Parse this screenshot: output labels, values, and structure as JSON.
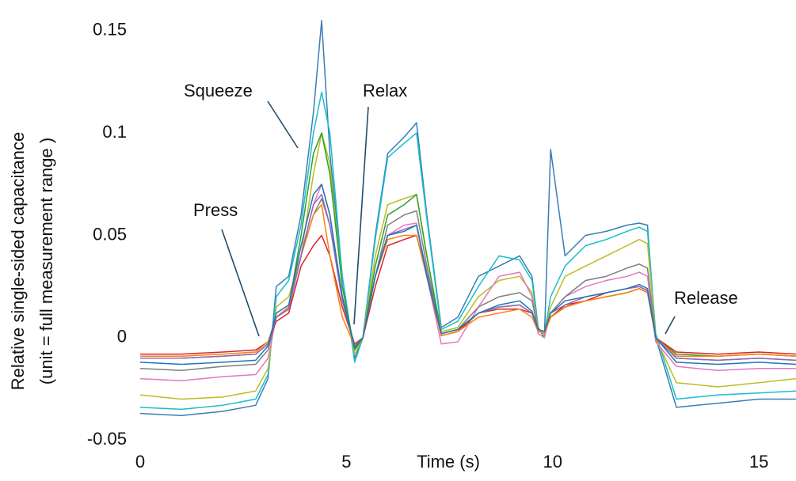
{
  "chart_data": {
    "type": "line",
    "xlabel": "Time (s)",
    "ylabel": [
      "Relative single-sided capacitance",
      "(unit = full measurement range )"
    ],
    "annotations": [
      "Squeeze",
      "Relax",
      "Press",
      "Release"
    ],
    "xlim": [
      0,
      15.9
    ],
    "ylim": [
      -0.07,
      0.165
    ],
    "xticks": [
      0,
      5,
      10,
      15
    ],
    "yticks": [
      0.15,
      0.1,
      0.05,
      0,
      -0.05
    ],
    "x": [
      0,
      1,
      2,
      2.8,
      3.1,
      3.3,
      3.6,
      3.9,
      4.2,
      4.4,
      4.6,
      4.9,
      5.2,
      5.4,
      5.7,
      6.0,
      6.4,
      6.7,
      6.95,
      7.3,
      7.7,
      8.2,
      8.7,
      9.2,
      9.5,
      9.65,
      9.8,
      9.95,
      10.3,
      10.8,
      11.3,
      11.8,
      12.1,
      12.3,
      12.5,
      13,
      14,
      15,
      15.9
    ],
    "series": [
      {
        "color": "#3a7db5",
        "values": [
          -0.037,
          -0.038,
          -0.036,
          -0.033,
          -0.02,
          0.025,
          0.03,
          0.06,
          0.11,
          0.155,
          0.09,
          0.03,
          -0.01,
          0.0,
          0.05,
          0.09,
          0.098,
          0.105,
          0.06,
          0.005,
          0.01,
          0.03,
          0.035,
          0.04,
          0.03,
          0.005,
          0.0,
          0.092,
          0.04,
          0.05,
          0.052,
          0.055,
          0.056,
          0.055,
          0.0,
          -0.034,
          -0.032,
          -0.03,
          -0.03
        ]
      },
      {
        "color": "#17becf",
        "values": [
          -0.034,
          -0.035,
          -0.033,
          -0.03,
          -0.018,
          0.02,
          0.028,
          0.055,
          0.1,
          0.12,
          0.1,
          0.03,
          -0.012,
          0.0,
          0.048,
          0.088,
          0.095,
          0.1,
          0.058,
          0.004,
          0.008,
          0.025,
          0.04,
          0.038,
          0.028,
          0.004,
          0.002,
          0.02,
          0.035,
          0.045,
          0.048,
          0.052,
          0.054,
          0.052,
          0.002,
          -0.03,
          -0.028,
          -0.027,
          -0.026
        ]
      },
      {
        "color": "#bcbd22",
        "values": [
          -0.028,
          -0.03,
          -0.029,
          -0.026,
          -0.015,
          0.015,
          0.02,
          0.04,
          0.08,
          0.1,
          0.085,
          0.025,
          -0.008,
          0.0,
          0.04,
          0.065,
          0.068,
          0.07,
          0.04,
          0.003,
          0.005,
          0.02,
          0.028,
          0.03,
          0.022,
          0.004,
          0.002,
          0.015,
          0.03,
          0.035,
          0.04,
          0.045,
          0.048,
          0.046,
          0.0,
          -0.022,
          -0.024,
          -0.022,
          -0.02
        ]
      },
      {
        "color": "#e377c2",
        "values": [
          -0.02,
          -0.021,
          -0.019,
          -0.018,
          -0.01,
          0.01,
          0.015,
          0.04,
          0.065,
          0.075,
          0.06,
          0.02,
          -0.005,
          0.0,
          0.03,
          0.05,
          0.055,
          0.056,
          0.03,
          -0.003,
          -0.002,
          0.015,
          0.03,
          0.032,
          0.02,
          0.002,
          0.0,
          0.012,
          0.02,
          0.025,
          0.028,
          0.03,
          0.032,
          0.03,
          -0.002,
          -0.014,
          -0.016,
          -0.015,
          -0.015
        ]
      },
      {
        "color": "#7f7f7f",
        "values": [
          -0.015,
          -0.016,
          -0.014,
          -0.013,
          -0.006,
          0.01,
          0.014,
          0.04,
          0.06,
          0.068,
          0.055,
          0.02,
          -0.004,
          0.0,
          0.03,
          0.055,
          0.06,
          0.062,
          0.035,
          0.002,
          0.004,
          0.015,
          0.02,
          0.022,
          0.018,
          0.004,
          0.003,
          0.012,
          0.02,
          0.028,
          0.03,
          0.034,
          0.036,
          0.034,
          0.0,
          -0.01,
          -0.011,
          -0.01,
          -0.011
        ]
      },
      {
        "color": "#2ca02c",
        "values": [
          -0.01,
          -0.01,
          -0.009,
          -0.008,
          -0.003,
          0.01,
          0.015,
          0.05,
          0.09,
          0.1,
          0.08,
          0.025,
          -0.006,
          0.0,
          0.035,
          0.06,
          0.065,
          0.07,
          0.04,
          0.002,
          0.004,
          0.012,
          0.015,
          0.016,
          0.012,
          0.004,
          0.003,
          0.01,
          0.015,
          0.018,
          0.02,
          0.022,
          0.024,
          0.022,
          0.0,
          -0.008,
          -0.009,
          -0.008,
          -0.009
        ]
      },
      {
        "color": "#d62728",
        "values": [
          -0.008,
          -0.008,
          -0.007,
          -0.006,
          -0.002,
          0.008,
          0.012,
          0.035,
          0.045,
          0.05,
          0.04,
          0.015,
          -0.003,
          0.0,
          0.025,
          0.045,
          0.048,
          0.05,
          0.03,
          0.001,
          0.003,
          0.012,
          0.014,
          0.014,
          0.012,
          0.004,
          0.003,
          0.01,
          0.016,
          0.018,
          0.022,
          0.024,
          0.025,
          0.023,
          0.0,
          -0.007,
          -0.008,
          -0.007,
          -0.008
        ]
      },
      {
        "color": "#ff7f0e",
        "values": [
          -0.009,
          -0.009,
          -0.008,
          -0.007,
          -0.002,
          0.01,
          0.015,
          0.04,
          0.06,
          0.065,
          0.04,
          0.01,
          -0.004,
          0.0,
          0.03,
          0.048,
          0.05,
          0.05,
          0.03,
          0.001,
          0.003,
          0.01,
          0.012,
          0.014,
          0.01,
          0.003,
          0.002,
          0.01,
          0.015,
          0.018,
          0.02,
          0.022,
          0.024,
          0.022,
          0.0,
          -0.009,
          -0.009,
          -0.008,
          -0.009
        ]
      },
      {
        "color": "#9467bd",
        "values": [
          -0.01,
          -0.01,
          -0.009,
          -0.008,
          -0.003,
          0.01,
          0.014,
          0.04,
          0.065,
          0.07,
          0.055,
          0.018,
          -0.004,
          0.0,
          0.03,
          0.05,
          0.053,
          0.055,
          0.032,
          0.002,
          0.004,
          0.012,
          0.015,
          0.016,
          0.012,
          0.004,
          0.003,
          0.012,
          0.016,
          0.02,
          0.022,
          0.024,
          0.025,
          0.023,
          0.0,
          -0.01,
          -0.011,
          -0.01,
          -0.011
        ]
      },
      {
        "color": "#1f77b4",
        "values": [
          -0.012,
          -0.013,
          -0.012,
          -0.011,
          -0.004,
          0.012,
          0.016,
          0.045,
          0.07,
          0.075,
          0.06,
          0.02,
          -0.005,
          0.0,
          0.03,
          0.05,
          0.052,
          0.055,
          0.03,
          0.002,
          0.004,
          0.012,
          0.016,
          0.018,
          0.013,
          0.004,
          0.003,
          0.012,
          0.018,
          0.02,
          0.022,
          0.024,
          0.026,
          0.024,
          0.0,
          -0.012,
          -0.013,
          -0.012,
          -0.013
        ]
      }
    ]
  }
}
